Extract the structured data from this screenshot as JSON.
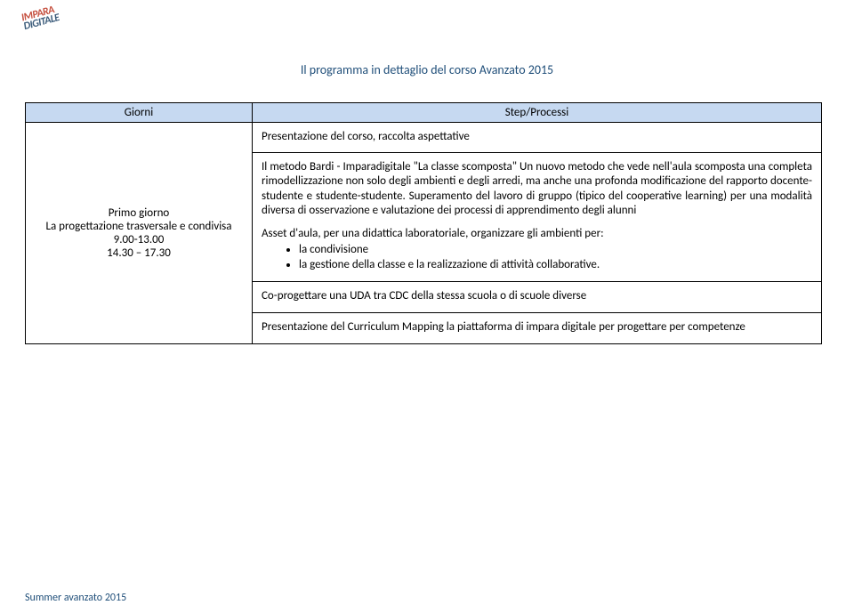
{
  "logo": {
    "line1": "IMPARA",
    "line2": "DIGITALE"
  },
  "page_title": "Il programma in dettaglio del corso Avanzato 2015",
  "table": {
    "headers": {
      "col1": "Giorni",
      "col2": "Step/Processi"
    },
    "left": {
      "day": "Primo giorno",
      "topic": "La progettazione trasversale e condivisa",
      "time1": "9.00-13.00",
      "time2": "14.30 – 17.30"
    },
    "intro": "Presentazione del corso, raccolta aspettative",
    "body": "Il metodo Bardi - Imparadigitale \"La classe scomposta\" Un nuovo metodo che vede nell'aula scomposta una completa rimodellizzazione non solo degli ambienti e degli arredi, ma anche una profonda modificazione del rapporto docente-studente e studente-studente. Superamento del lavoro di gruppo (tipico del cooperative learning) per una modalità diversa di osservazione e valutazione dei processi di apprendimento degli alunni",
    "asset_line": "Asset d'aula, per una didattica laboratoriale,  organizzare gli ambienti per:",
    "bullets": [
      "la condivisione",
      "la gestione della classe e la realizzazione di attività collaborative."
    ],
    "sub1": "Co-progettare una UDA tra CDC della stessa scuola o di scuole diverse",
    "sub2": "Presentazione del Curriculum Mapping la piattaforma di impara digitale per progettare per competenze"
  },
  "footer": "Summer avanzato 2015"
}
